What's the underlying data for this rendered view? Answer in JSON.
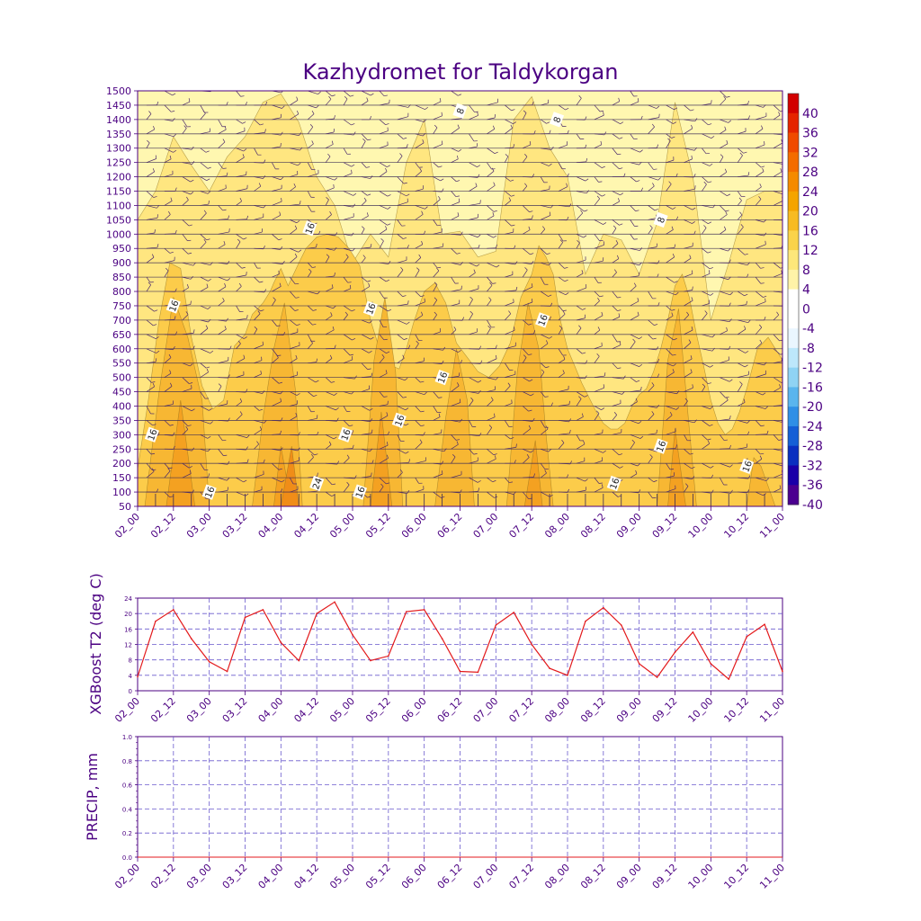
{
  "title": "Kazhydromet for Taldykorgan",
  "colors": {
    "text": "#4b0082",
    "grid": "#6a5acd",
    "t2_line": "#e31a1c",
    "barb": "#4b2a6b",
    "fill_base": "#ffe27a",
    "fill_8_12": "#ffe680",
    "fill_12_16": "#fccc4a",
    "fill_16_20": "#f7b733",
    "fill_20_24": "#f4a121",
    "fill_24_28": "#f08d18",
    "fill_4_8": "#fff7b0"
  },
  "time_labels": [
    "02_00",
    "02_12",
    "03_00",
    "03_12",
    "04_00",
    "04_12",
    "05_00",
    "05_12",
    "06_00",
    "06_12",
    "07_00",
    "07_12",
    "08_00",
    "08_12",
    "09_00",
    "09_12",
    "10_00",
    "10_12",
    "11_00"
  ],
  "chart_data": [
    {
      "id": "cross_section",
      "type": "heatmap",
      "title": "Kazhydromet for Taldykorgan",
      "xlabel": "",
      "ylabel": "",
      "x_categories": [
        "02_00",
        "02_12",
        "03_00",
        "03_12",
        "04_00",
        "04_12",
        "05_00",
        "05_12",
        "06_00",
        "06_12",
        "07_00",
        "07_12",
        "08_00",
        "08_12",
        "09_00",
        "09_12",
        "10_00",
        "10_12",
        "11_00"
      ],
      "y_levels": [
        50,
        100,
        150,
        200,
        250,
        300,
        350,
        400,
        450,
        500,
        550,
        600,
        650,
        700,
        750,
        800,
        850,
        900,
        950,
        1000,
        1050,
        1100,
        1150,
        1200,
        1250,
        1300,
        1350,
        1400,
        1450,
        1500
      ],
      "ylim": [
        50,
        1500
      ],
      "contour_levels": [
        8,
        12,
        16,
        20,
        24
      ],
      "regions": [
        {
          "level": 8,
          "x": [
            0,
            0,
            0.5,
            1,
            1.5,
            2,
            2.5,
            3,
            3.5,
            4,
            4.5,
            5,
            5.5,
            6,
            6.5,
            7,
            7.5,
            8,
            8.5,
            9,
            9.5,
            10,
            10.5,
            11,
            11.5,
            12,
            12.5,
            13,
            13.5,
            14,
            14.5,
            15,
            15.5,
            16,
            16.5,
            17,
            17.5,
            18,
            18,
            0
          ],
          "y": [
            50,
            1050,
            1150,
            1340,
            1240,
            1150,
            1270,
            1340,
            1460,
            1490,
            1390,
            1200,
            1100,
            900,
            1000,
            920,
            1250,
            1400,
            1000,
            1010,
            920,
            940,
            1400,
            1480,
            1300,
            1200,
            860,
            1000,
            980,
            860,
            1040,
            1460,
            1200,
            700,
            900,
            1120,
            1150,
            1150,
            50,
            50
          ]
        },
        {
          "level": 12,
          "x": [
            0,
            0,
            0.3,
            0.6,
            0.9,
            1.2,
            1.5,
            1.8,
            2.1,
            2.4,
            2.7,
            3.0,
            3.2,
            3.5,
            3.7,
            3.8,
            4.0,
            4.2,
            4.5,
            4.7,
            5.0,
            5.3,
            5.6,
            5.9,
            6.2,
            6.5,
            6.7,
            6.9,
            7.1,
            7.3,
            7.5,
            7.7,
            8.0,
            8.3,
            8.6,
            8.9,
            9.2,
            9.5,
            9.8,
            10.1,
            10.4,
            10.7,
            11.0,
            11.2,
            11.4,
            11.6,
            11.8,
            12.0,
            12.2,
            12.4,
            12.6,
            12.8,
            13.0,
            13.2,
            13.4,
            13.6,
            13.8,
            14.0,
            14.2,
            14.4,
            14.6,
            14.8,
            15.0,
            15.2,
            15.4,
            15.6,
            15.8,
            16.0,
            16.2,
            16.4,
            16.6,
            16.8,
            17.0,
            17.3,
            17.6,
            18.0,
            18.0
          ],
          "y": [
            50,
            180,
            420,
            700,
            900,
            880,
            640,
            470,
            390,
            420,
            610,
            650,
            720,
            760,
            800,
            830,
            880,
            820,
            900,
            950,
            990,
            1000,
            990,
            950,
            890,
            700,
            620,
            560,
            540,
            530,
            600,
            690,
            800,
            830,
            760,
            620,
            570,
            520,
            500,
            540,
            620,
            780,
            860,
            960,
            920,
            860,
            700,
            600,
            540,
            480,
            430,
            380,
            340,
            320,
            320,
            340,
            400,
            440,
            460,
            520,
            600,
            700,
            820,
            860,
            780,
            650,
            540,
            420,
            340,
            300,
            320,
            380,
            460,
            600,
            640,
            560,
            50
          ]
        },
        {
          "level": 16,
          "x": [
            0.2,
            0.6,
            1.0,
            1.4,
            1.8,
            2.0,
            3.2,
            3.5,
            3.8,
            4.1,
            4.4,
            4.6,
            6.3,
            6.6,
            6.9,
            7.2,
            7.4,
            8.3,
            8.6,
            8.9,
            9.2,
            9.4,
            10.3,
            10.6,
            10.9,
            11.2,
            11.4,
            11.6,
            14.5,
            14.8,
            15.1,
            15.4,
            15.6,
            17.0,
            17.2,
            17.4,
            17.6,
            17.8
          ],
          "y": [
            50,
            450,
            780,
            640,
            420,
            50,
            50,
            360,
            600,
            760,
            460,
            50,
            50,
            560,
            780,
            520,
            50,
            50,
            360,
            600,
            420,
            50,
            50,
            520,
            760,
            600,
            300,
            50,
            50,
            560,
            740,
            320,
            50,
            50,
            220,
            190,
            120,
            50
          ]
        },
        {
          "level": 20,
          "x": [
            0.8,
            1.2,
            1.6,
            3.8,
            4.0,
            4.3,
            6.5,
            6.8,
            7.1,
            10.8,
            11.1,
            11.3,
            14.8,
            15.0,
            15.3
          ],
          "y": [
            50,
            420,
            50,
            50,
            260,
            50,
            50,
            380,
            50,
            50,
            280,
            50,
            50,
            320,
            50
          ]
        },
        {
          "level": 24,
          "x": [
            4.0,
            4.3,
            4.5
          ],
          "y": [
            50,
            260,
            50
          ]
        }
      ],
      "contour_labels": [
        {
          "text": "16",
          "x": 1.0,
          "y": 750
        },
        {
          "text": "16",
          "x": 0.4,
          "y": 300
        },
        {
          "text": "16",
          "x": 2.0,
          "y": 100
        },
        {
          "text": "16",
          "x": 4.8,
          "y": 1020
        },
        {
          "text": "16",
          "x": 6.5,
          "y": 740
        },
        {
          "text": "16",
          "x": 5.8,
          "y": 300
        },
        {
          "text": "16",
          "x": 6.2,
          "y": 100
        },
        {
          "text": "16",
          "x": 7.3,
          "y": 350
        },
        {
          "text": "16",
          "x": 8.5,
          "y": 500
        },
        {
          "text": "16",
          "x": 11.3,
          "y": 700
        },
        {
          "text": "16",
          "x": 13.3,
          "y": 130
        },
        {
          "text": "16",
          "x": 14.6,
          "y": 260
        },
        {
          "text": "16",
          "x": 17.0,
          "y": 190
        },
        {
          "text": "24",
          "x": 5.0,
          "y": 130
        },
        {
          "text": "8",
          "x": 9.0,
          "y": 1430
        },
        {
          "text": "8",
          "x": 11.7,
          "y": 1400
        },
        {
          "text": "8",
          "x": 14.6,
          "y": 1050
        }
      ],
      "colorbar": {
        "labels": [
          "40",
          "36",
          "32",
          "28",
          "24",
          "20",
          "16",
          "12",
          "8",
          "4",
          "0",
          "-4",
          "-8",
          "-12",
          "-16",
          "-20",
          "-24",
          "-28",
          "-32",
          "-36",
          "-40"
        ],
        "colors": [
          "#d20000",
          "#e52400",
          "#f04a00",
          "#f46c00",
          "#f58a00",
          "#f5a400",
          "#f7bb22",
          "#fad34a",
          "#fde77a",
          "#fff3a8",
          "#ffffff",
          "#ffffff",
          "#eaf6ff",
          "#bde7fb",
          "#8fd3f4",
          "#5ab5ee",
          "#2f8fe6",
          "#155fd6",
          "#0a2fc0",
          "#1a00a8",
          "#4b0090"
        ]
      }
    },
    {
      "id": "t2_series",
      "type": "line",
      "ylabel": "XGBoost T2 (deg C)",
      "xlabel": "",
      "ylim": [
        0,
        24
      ],
      "yticks": [
        "0",
        "4",
        "8",
        "12",
        "16",
        "20",
        "24"
      ],
      "x": [
        0,
        0.5,
        1,
        1.5,
        2,
        2.5,
        3,
        3.5,
        4,
        4.5,
        5,
        5.5,
        6,
        6.5,
        7,
        7.5,
        8,
        8.5,
        9,
        9.5,
        10,
        10.5,
        11,
        11.5,
        12,
        12.5,
        13,
        13.5,
        14,
        14.5,
        15,
        15.5,
        16,
        16.5,
        17,
        17.5,
        18
      ],
      "series": [
        {
          "name": "XGBoost T2",
          "values": [
            3.6,
            18,
            21,
            13.5,
            7.5,
            5,
            19,
            21,
            12.5,
            7.8,
            20,
            23,
            14.5,
            7.8,
            9,
            20.5,
            21,
            13.5,
            5,
            4.8,
            17,
            20.3,
            12,
            5.8,
            4,
            18,
            21.5,
            17,
            7,
            3.5,
            10,
            15.2,
            7,
            3,
            14,
            17.2,
            5
          ]
        }
      ]
    },
    {
      "id": "precip_series",
      "type": "line",
      "ylabel": "PRECIP, mm",
      "xlabel": "",
      "ylim": [
        0,
        1.0
      ],
      "yticks": [
        "0.0",
        "0.2",
        "0.4",
        "0.6",
        "0.8",
        "1.0"
      ],
      "x": [
        0,
        18
      ],
      "series": [
        {
          "name": "PRECIP",
          "values": [
            0,
            0
          ]
        }
      ]
    }
  ]
}
